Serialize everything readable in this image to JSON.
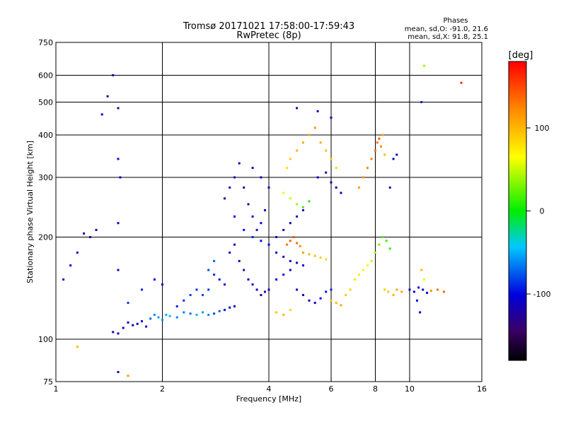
{
  "header": {
    "title": "Tromsø 20171021 17:58:00-17:59:43",
    "subtitle": "RwPretec (8p)",
    "stats_title": "Phases",
    "stats_line1": "mean, sd,O: -91.0, 21.6",
    "stats_line2": "mean, sd,X:  91.8, 25.1"
  },
  "colorbar": {
    "label": "[deg]",
    "ticks": [
      {
        "value": 100,
        "label": "100"
      },
      {
        "value": 0,
        "label": "0"
      },
      {
        "value": -100,
        "label": "-100"
      }
    ],
    "range": [
      -180,
      180
    ],
    "colormap": "rainbow (black-purple-blue-cyan-green-yellow-orange-red)"
  },
  "chart_data": {
    "type": "scatter",
    "title": "Tromsø 20171021 17:58:00-17:59:43",
    "subtitle": "RwPretec (8p)",
    "xlabel": "Frequency [MHz]",
    "ylabel": "Stationary phase Virtual Height [km]",
    "xscale": "log",
    "yscale": "log",
    "xlim": [
      1,
      16
    ],
    "ylim": [
      75,
      750
    ],
    "xticks": [
      {
        "value": 1,
        "label": "1"
      },
      {
        "value": 2,
        "label": "2"
      },
      {
        "value": 4,
        "label": "4"
      },
      {
        "value": 6,
        "label": "6"
      },
      {
        "value": 8,
        "label": "8"
      },
      {
        "value": 10,
        "label": "10"
      },
      {
        "value": 16,
        "label": "16"
      }
    ],
    "yticks": [
      {
        "value": 75,
        "label": "75"
      },
      {
        "value": 100,
        "label": "100"
      },
      {
        "value": 200,
        "label": "200"
      },
      {
        "value": 300,
        "label": "300"
      },
      {
        "value": 400,
        "label": "400"
      },
      {
        "value": 500,
        "label": "500"
      },
      {
        "value": 600,
        "label": "600"
      },
      {
        "value": 750,
        "label": "750"
      }
    ],
    "gridlines_x": [
      2,
      4,
      6,
      8,
      10
    ],
    "gridlines_y": [
      100,
      200,
      300,
      400,
      500,
      600
    ],
    "grid": true,
    "color_variable": "phase [deg]",
    "points": [
      [
        1.45,
        105,
        -115
      ],
      [
        1.5,
        104,
        -118
      ],
      [
        1.55,
        108,
        -110
      ],
      [
        1.6,
        112,
        -105
      ],
      [
        1.65,
        110,
        -112
      ],
      [
        1.7,
        111,
        -108
      ],
      [
        1.75,
        113,
        -100
      ],
      [
        1.8,
        109,
        -95
      ],
      [
        1.85,
        115,
        -70
      ],
      [
        1.9,
        118,
        -60
      ],
      [
        1.95,
        116,
        -55
      ],
      [
        2.0,
        114,
        -58
      ],
      [
        2.05,
        118,
        -50
      ],
      [
        2.1,
        117,
        -45
      ],
      [
        2.2,
        116,
        -60
      ],
      [
        2.3,
        120,
        -65
      ],
      [
        2.4,
        119,
        -70
      ],
      [
        2.5,
        118,
        -48
      ],
      [
        2.6,
        120,
        -55
      ],
      [
        2.7,
        118,
        -62
      ],
      [
        2.8,
        119,
        -80
      ],
      [
        2.9,
        121,
        -75
      ],
      [
        3.0,
        122,
        -95
      ],
      [
        3.1,
        124,
        -105
      ],
      [
        3.2,
        125,
        -110
      ],
      [
        1.6,
        128,
        -85
      ],
      [
        1.75,
        140,
        -90
      ],
      [
        1.9,
        150,
        -100
      ],
      [
        2.0,
        145,
        -110
      ],
      [
        1.5,
        160,
        -120
      ],
      [
        1.5,
        220,
        -115
      ],
      [
        1.52,
        300,
        -110
      ],
      [
        1.5,
        340,
        -112
      ],
      [
        1.5,
        480,
        -118
      ],
      [
        1.45,
        600,
        -120
      ],
      [
        1.4,
        520,
        -115
      ],
      [
        1.35,
        460,
        -108
      ],
      [
        1.3,
        210,
        -112
      ],
      [
        1.25,
        200,
        -116
      ],
      [
        1.2,
        205,
        -110
      ],
      [
        1.15,
        180,
        -105
      ],
      [
        1.1,
        165,
        -100
      ],
      [
        1.05,
        150,
        -95
      ],
      [
        3.0,
        260,
        -110
      ],
      [
        3.1,
        280,
        -115
      ],
      [
        3.2,
        300,
        -112
      ],
      [
        3.3,
        330,
        -108
      ],
      [
        3.4,
        280,
        -118
      ],
      [
        3.5,
        250,
        -120
      ],
      [
        3.6,
        230,
        -105
      ],
      [
        3.7,
        210,
        -95
      ],
      [
        3.8,
        220,
        -100
      ],
      [
        3.9,
        240,
        -110
      ],
      [
        3.1,
        180,
        -112
      ],
      [
        3.2,
        190,
        -118
      ],
      [
        3.3,
        170,
        -115
      ],
      [
        3.4,
        160,
        -120
      ],
      [
        3.5,
        150,
        -110
      ],
      [
        3.6,
        145,
        -108
      ],
      [
        3.7,
        140,
        -112
      ],
      [
        3.8,
        135,
        -115
      ],
      [
        3.9,
        138,
        -118
      ],
      [
        4.0,
        140,
        -110
      ],
      [
        3.0,
        145,
        -100
      ],
      [
        2.9,
        150,
        -95
      ],
      [
        2.8,
        155,
        -90
      ],
      [
        2.7,
        140,
        -85
      ],
      [
        2.6,
        135,
        -80
      ],
      [
        4.2,
        150,
        -100
      ],
      [
        4.4,
        155,
        -95
      ],
      [
        4.6,
        160,
        -105
      ],
      [
        4.8,
        140,
        -110
      ],
      [
        5.0,
        135,
        -115
      ],
      [
        5.2,
        130,
        -112
      ],
      [
        5.4,
        128,
        -108
      ],
      [
        5.6,
        132,
        -100
      ],
      [
        5.8,
        138,
        -95
      ],
      [
        6.0,
        140,
        -90
      ],
      [
        4.2,
        180,
        -115
      ],
      [
        4.4,
        175,
        -112
      ],
      [
        4.6,
        170,
        -108
      ],
      [
        4.8,
        168,
        -105
      ],
      [
        5.0,
        165,
        -100
      ],
      [
        4.2,
        200,
        -110
      ],
      [
        4.4,
        210,
        -118
      ],
      [
        4.6,
        220,
        -115
      ],
      [
        4.8,
        230,
        -112
      ],
      [
        5.0,
        240,
        -108
      ],
      [
        4.5,
        190,
        130
      ],
      [
        4.6,
        195,
        140
      ],
      [
        4.7,
        200,
        145
      ],
      [
        4.8,
        192,
        135
      ],
      [
        4.9,
        188,
        120
      ],
      [
        5.0,
        180,
        110
      ],
      [
        5.2,
        178,
        100
      ],
      [
        5.4,
        176,
        95
      ],
      [
        5.6,
        174,
        90
      ],
      [
        5.8,
        172,
        85
      ],
      [
        4.5,
        320,
        80
      ],
      [
        4.6,
        340,
        90
      ],
      [
        4.8,
        360,
        100
      ],
      [
        5.0,
        380,
        105
      ],
      [
        5.2,
        400,
        110
      ],
      [
        5.4,
        420,
        115
      ],
      [
        5.6,
        380,
        105
      ],
      [
        5.8,
        360,
        95
      ],
      [
        6.0,
        340,
        90
      ],
      [
        6.2,
        320,
        85
      ],
      [
        4.4,
        270,
        60
      ],
      [
        4.6,
        260,
        50
      ],
      [
        4.8,
        250,
        40
      ],
      [
        5.0,
        245,
        20
      ],
      [
        5.2,
        255,
        10
      ],
      [
        5.5,
        300,
        -100
      ],
      [
        5.8,
        310,
        -110
      ],
      [
        6.0,
        290,
        -105
      ],
      [
        6.2,
        280,
        -115
      ],
      [
        6.4,
        270,
        -112
      ],
      [
        6.0,
        130,
        95
      ],
      [
        6.2,
        128,
        100
      ],
      [
        6.4,
        126,
        105
      ],
      [
        6.6,
        135,
        90
      ],
      [
        6.8,
        140,
        85
      ],
      [
        7.0,
        150,
        80
      ],
      [
        7.2,
        155,
        75
      ],
      [
        7.4,
        160,
        70
      ],
      [
        7.6,
        165,
        60
      ],
      [
        7.8,
        170,
        50
      ],
      [
        8.0,
        180,
        40
      ],
      [
        8.2,
        190,
        30
      ],
      [
        8.4,
        200,
        20
      ],
      [
        8.6,
        195,
        15
      ],
      [
        8.8,
        185,
        10
      ],
      [
        7.2,
        280,
        110
      ],
      [
        7.4,
        300,
        115
      ],
      [
        7.6,
        320,
        120
      ],
      [
        7.8,
        340,
        125
      ],
      [
        8.0,
        360,
        130
      ],
      [
        8.1,
        380,
        135
      ],
      [
        8.2,
        390,
        140
      ],
      [
        8.3,
        370,
        120
      ],
      [
        8.4,
        400,
        110
      ],
      [
        8.5,
        350,
        100
      ],
      [
        8.5,
        140,
        90
      ],
      [
        8.7,
        138,
        95
      ],
      [
        9.0,
        135,
        100
      ],
      [
        9.2,
        140,
        105
      ],
      [
        9.5,
        138,
        110
      ],
      [
        10.0,
        140,
        -110
      ],
      [
        10.3,
        138,
        -105
      ],
      [
        10.6,
        142,
        -100
      ],
      [
        10.9,
        140,
        -108
      ],
      [
        11.2,
        137,
        -112
      ],
      [
        11.5,
        139,
        120
      ],
      [
        12.0,
        140,
        130
      ],
      [
        12.5,
        138,
        140
      ],
      [
        11.0,
        150,
        60
      ],
      [
        10.8,
        160,
        100
      ],
      [
        9.0,
        340,
        -105
      ],
      [
        9.2,
        350,
        -110
      ],
      [
        8.8,
        280,
        -108
      ],
      [
        11.0,
        640,
        40
      ],
      [
        14.0,
        570,
        160
      ],
      [
        10.8,
        500,
        -90
      ],
      [
        10.5,
        130,
        -95
      ],
      [
        10.7,
        120,
        -100
      ],
      [
        4.8,
        480,
        -110
      ],
      [
        5.5,
        470,
        -115
      ],
      [
        6.0,
        450,
        -108
      ],
      [
        3.6,
        320,
        -105
      ],
      [
        3.8,
        300,
        -112
      ],
      [
        4.0,
        280,
        -118
      ],
      [
        3.2,
        230,
        -100
      ],
      [
        3.4,
        210,
        -95
      ],
      [
        3.6,
        200,
        -90
      ],
      [
        3.8,
        195,
        -98
      ],
      [
        4.0,
        190,
        -102
      ],
      [
        2.5,
        140,
        -85
      ],
      [
        2.4,
        135,
        -82
      ],
      [
        2.3,
        130,
        -88
      ],
      [
        2.2,
        125,
        -92
      ],
      [
        2.7,
        160,
        -78
      ],
      [
        2.8,
        170,
        -72
      ],
      [
        4.2,
        120,
        95
      ],
      [
        4.4,
        118,
        100
      ],
      [
        4.6,
        122,
        85
      ],
      [
        1.15,
        95,
        100
      ],
      [
        1.6,
        78,
        115
      ],
      [
        1.5,
        80,
        -120
      ]
    ]
  }
}
